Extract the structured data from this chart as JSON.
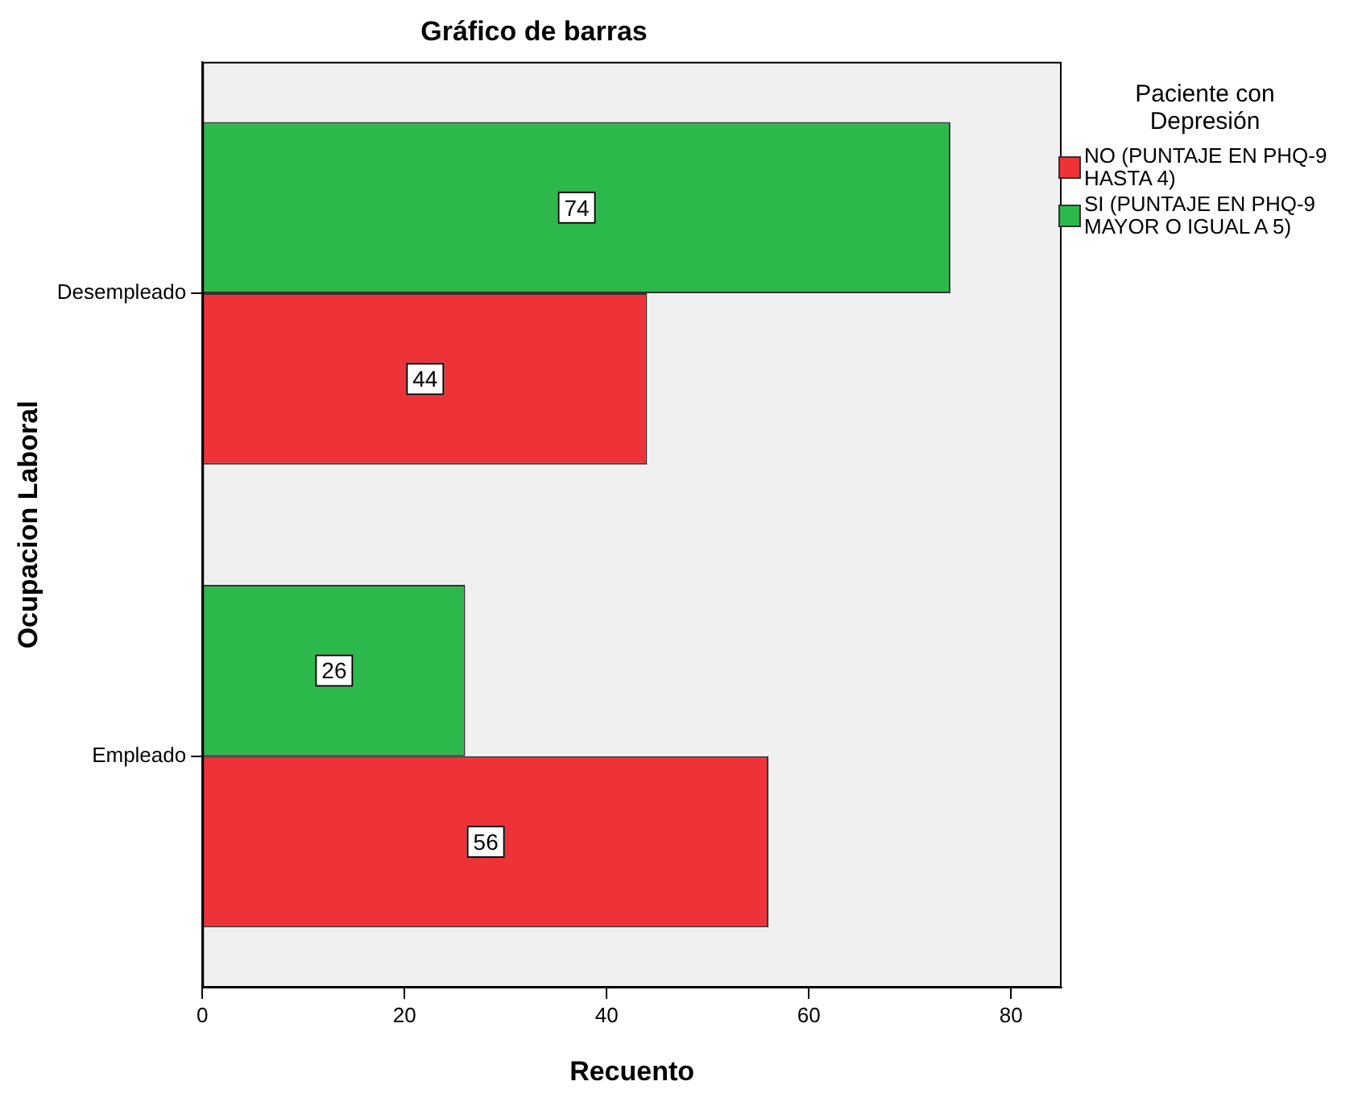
{
  "chart_data": {
    "type": "bar",
    "orientation": "horizontal",
    "title": "Gráfico de barras",
    "xlabel": "Recuento",
    "ylabel": "Ocupacion Laboral",
    "legend_title": "Paciente con Depresión",
    "legend": "top right",
    "data_labels": true,
    "categories": [
      "Desempleado",
      "Empleado"
    ],
    "series": [
      {
        "name": "NO (PUNTAJE EN PHQ-9 HASTA 4)",
        "color": "#ee3338",
        "values": [
          44,
          56
        ]
      },
      {
        "name": "SI (PUNTAJE EN PHQ-9 MAYOR O IGUAL A 5)",
        "color": "#2db84c",
        "values": [
          74,
          26
        ]
      }
    ],
    "xlim": [
      0,
      85
    ],
    "xticks": [
      0,
      20,
      40,
      60,
      80
    ]
  }
}
